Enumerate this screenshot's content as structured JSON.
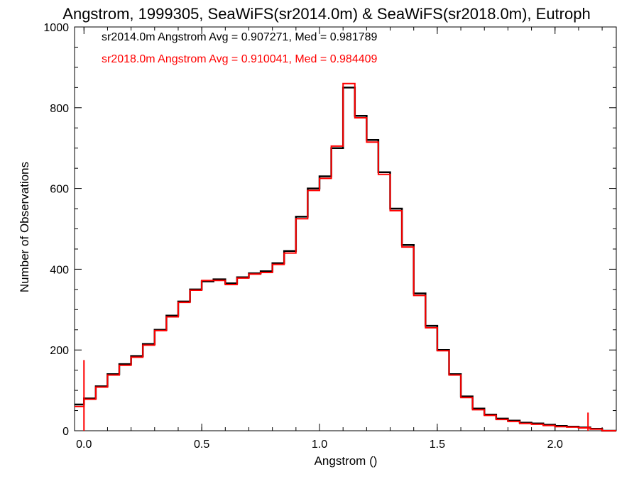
{
  "chart_data": {
    "type": "line",
    "style": "step-histogram",
    "title": "Angstrom, 1999305, SeaWiFS(sr2014.0m) & SeaWiFS(sr2018.0m), Eutroph",
    "xlabel": "Angstrom ()",
    "ylabel": "Number of Observations",
    "xlim": [
      -0.04,
      2.26
    ],
    "ylim": [
      0,
      1000
    ],
    "x_ticks": [
      0.0,
      0.5,
      1.0,
      1.5,
      2.0
    ],
    "x_tick_labels": [
      "0.0",
      "0.5",
      "1.0",
      "1.5",
      "2.0"
    ],
    "y_ticks": [
      0,
      200,
      400,
      600,
      800,
      1000
    ],
    "y_tick_labels": [
      "0",
      "200",
      "400",
      "600",
      "800",
      "1000"
    ],
    "grid": false,
    "legend_position": "top-left",
    "series": [
      {
        "name": "sr2014.0m",
        "label": "sr2014.0m Angstrom Avg = 0.907271, Med = 0.981789",
        "color": "#000000",
        "x": [
          -0.04,
          0.0,
          0.05,
          0.1,
          0.15,
          0.2,
          0.25,
          0.3,
          0.35,
          0.4,
          0.45,
          0.5,
          0.55,
          0.6,
          0.65,
          0.7,
          0.75,
          0.8,
          0.85,
          0.9,
          0.95,
          1.0,
          1.05,
          1.1,
          1.15,
          1.2,
          1.25,
          1.3,
          1.35,
          1.4,
          1.45,
          1.5,
          1.55,
          1.6,
          1.65,
          1.7,
          1.75,
          1.8,
          1.85,
          1.9,
          1.95,
          2.0,
          2.05,
          2.1,
          2.15,
          2.2,
          2.26
        ],
        "y": [
          65,
          80,
          110,
          140,
          165,
          185,
          215,
          250,
          285,
          320,
          350,
          370,
          375,
          365,
          380,
          390,
          395,
          415,
          445,
          530,
          600,
          630,
          700,
          850,
          780,
          720,
          640,
          550,
          460,
          340,
          260,
          200,
          140,
          85,
          55,
          40,
          30,
          25,
          20,
          18,
          15,
          12,
          10,
          8,
          5,
          0,
          0
        ]
      },
      {
        "name": "sr2018.0m",
        "label": "sr2018.0m Angstrom Avg = 0.910041, Med = 0.984409",
        "color": "#ff0000",
        "x": [
          -0.04,
          0.0,
          0.05,
          0.1,
          0.15,
          0.2,
          0.25,
          0.3,
          0.35,
          0.4,
          0.45,
          0.5,
          0.55,
          0.6,
          0.65,
          0.7,
          0.75,
          0.8,
          0.85,
          0.9,
          0.95,
          1.0,
          1.05,
          1.1,
          1.15,
          1.2,
          1.25,
          1.3,
          1.35,
          1.4,
          1.45,
          1.5,
          1.55,
          1.6,
          1.65,
          1.7,
          1.75,
          1.8,
          1.85,
          1.9,
          1.95,
          2.0,
          2.05,
          2.1,
          2.15,
          2.2,
          2.26
        ],
        "y": [
          60,
          78,
          108,
          138,
          162,
          182,
          212,
          248,
          282,
          318,
          348,
          372,
          372,
          362,
          378,
          388,
          392,
          412,
          440,
          525,
          595,
          625,
          705,
          860,
          775,
          715,
          635,
          545,
          455,
          335,
          255,
          198,
          138,
          82,
          52,
          38,
          28,
          23,
          18,
          16,
          13,
          10,
          9,
          7,
          4,
          0,
          0
        ]
      }
    ],
    "annotations": [
      {
        "x": 0.0,
        "y": 175,
        "note": "spike"
      },
      {
        "x": 2.14,
        "y": 45,
        "note": "spike"
      }
    ]
  }
}
